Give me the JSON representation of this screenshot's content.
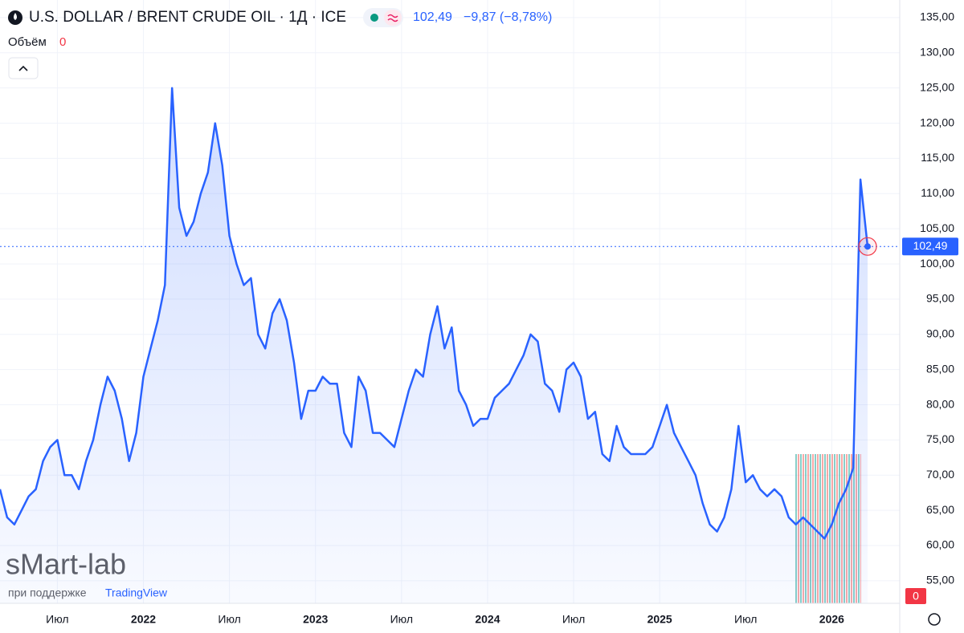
{
  "chart_data": {
    "type": "area",
    "title": "U.S. DOLLAR / BRENT CRUDE OIL · 1Д · ICE",
    "change": "−9,87 (−8,78%)",
    "price_line": {
      "value": 102.49,
      "label": "102,49"
    },
    "volume": {
      "label": "Объём",
      "value": 0
    },
    "watermark": "sMart-lab",
    "support_text": "при поддержке",
    "support_brand": "TradingView",
    "color": "#2962ff",
    "grid": true,
    "categories": [
      null,
      null,
      null,
      null,
      null,
      null,
      null,
      null,
      "Июл",
      null,
      null,
      null,
      null,
      null,
      null,
      null,
      null,
      null,
      null,
      null,
      "2022",
      null,
      null,
      null,
      null,
      null,
      null,
      null,
      null,
      null,
      null,
      null,
      "Июл",
      null,
      null,
      null,
      null,
      null,
      null,
      null,
      null,
      null,
      null,
      null,
      "2023",
      null,
      null,
      null,
      null,
      null,
      null,
      null,
      null,
      null,
      null,
      null,
      "Июл",
      null,
      null,
      null,
      null,
      null,
      null,
      null,
      null,
      null,
      null,
      null,
      "2024",
      null,
      null,
      null,
      null,
      null,
      null,
      null,
      null,
      null,
      null,
      null,
      "Июл",
      null,
      null,
      null,
      null,
      null,
      null,
      null,
      null,
      null,
      null,
      null,
      "2025",
      null,
      null,
      null,
      null,
      null,
      null,
      null,
      null,
      null,
      null,
      null,
      "Июл",
      null,
      null,
      null,
      null,
      null,
      null,
      null,
      null,
      null,
      null,
      null,
      "2026",
      null,
      null,
      null,
      null,
      null
    ],
    "values": [
      68,
      64,
      63,
      65,
      67,
      68,
      72,
      74,
      75,
      70,
      70,
      68,
      72,
      75,
      80,
      84,
      82,
      78,
      72,
      76,
      84,
      88,
      92,
      97,
      125,
      108,
      104,
      106,
      110,
      113,
      120,
      114,
      104,
      100,
      97,
      98,
      90,
      88,
      93,
      95,
      92,
      86,
      78,
      82,
      82,
      84,
      83,
      83,
      76,
      74,
      84,
      82,
      76,
      76,
      75,
      74,
      78,
      82,
      85,
      84,
      90,
      94,
      88,
      91,
      82,
      80,
      77,
      78,
      78,
      81,
      82,
      83,
      85,
      87,
      90,
      89,
      83,
      82,
      79,
      85,
      86,
      84,
      78,
      79,
      73,
      72,
      77,
      74,
      73,
      73,
      73,
      74,
      77,
      80,
      76,
      74,
      72,
      70,
      66,
      63,
      62,
      64,
      68,
      77,
      69,
      70,
      68,
      67,
      68,
      67,
      64,
      63,
      64,
      63,
      62,
      61,
      63,
      66,
      68,
      71,
      112,
      102.49
    ],
    "ylim": [
      51.8,
      137.5
    ],
    "yticks": [
      {
        "value": 55,
        "label": "55,00"
      },
      {
        "value": 60,
        "label": "60,00"
      },
      {
        "value": 65,
        "label": "65,00"
      },
      {
        "value": 70,
        "label": "70,00"
      },
      {
        "value": 75,
        "label": "75,00"
      },
      {
        "value": 80,
        "label": "80,00"
      },
      {
        "value": 85,
        "label": "85,00"
      },
      {
        "value": 90,
        "label": "90,00"
      },
      {
        "value": 95,
        "label": "95,00"
      },
      {
        "value": 100,
        "label": "100,00"
      },
      {
        "value": 105,
        "label": "105,00"
      },
      {
        "value": 110,
        "label": "110,00"
      },
      {
        "value": 115,
        "label": "115,00"
      },
      {
        "value": 120,
        "label": "120,00"
      },
      {
        "value": 125,
        "label": "125,00"
      },
      {
        "value": 130,
        "label": "130,00"
      },
      {
        "value": 135,
        "label": "135,00"
      }
    ]
  }
}
